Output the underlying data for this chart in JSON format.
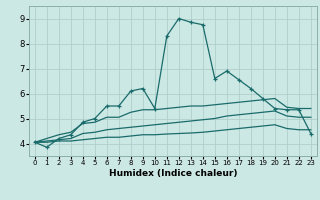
{
  "xlabel": "Humidex (Indice chaleur)",
  "bg_color": "#cce8e4",
  "grid_color": "#b0ceca",
  "line_color": "#1a6b6b",
  "xlim": [
    -0.5,
    23.5
  ],
  "ylim": [
    3.5,
    9.5
  ],
  "xticks": [
    0,
    1,
    2,
    3,
    4,
    5,
    6,
    7,
    8,
    9,
    10,
    11,
    12,
    13,
    14,
    15,
    16,
    17,
    18,
    19,
    20,
    21,
    22,
    23
  ],
  "yticks": [
    4,
    5,
    6,
    7,
    8,
    9
  ],
  "series1_x": [
    0,
    1,
    2,
    3,
    4,
    5,
    6,
    7,
    8,
    9,
    10,
    11,
    12,
    13,
    14,
    15,
    16,
    17,
    18,
    19,
    20,
    21,
    22,
    23
  ],
  "series1_y": [
    4.05,
    4.2,
    4.35,
    4.45,
    4.8,
    4.85,
    5.05,
    5.05,
    5.25,
    5.35,
    5.35,
    5.4,
    5.45,
    5.5,
    5.5,
    5.55,
    5.6,
    5.65,
    5.7,
    5.75,
    5.8,
    5.45,
    5.4,
    5.4
  ],
  "series2_x": [
    0,
    1,
    2,
    3,
    4,
    5,
    6,
    7,
    8,
    9,
    10,
    11,
    12,
    13,
    14,
    15,
    16,
    17,
    18,
    19,
    20,
    21,
    22,
    23
  ],
  "series2_y": [
    4.05,
    4.1,
    4.15,
    4.2,
    4.4,
    4.45,
    4.55,
    4.6,
    4.65,
    4.7,
    4.75,
    4.8,
    4.85,
    4.9,
    4.95,
    5.0,
    5.1,
    5.15,
    5.2,
    5.25,
    5.3,
    5.1,
    5.05,
    5.05
  ],
  "series3_x": [
    0,
    1,
    2,
    3,
    4,
    5,
    6,
    7,
    8,
    9,
    10,
    11,
    12,
    13,
    14,
    15,
    16,
    17,
    18,
    19,
    20,
    21,
    22,
    23
  ],
  "series3_y": [
    4.05,
    4.05,
    4.1,
    4.1,
    4.15,
    4.2,
    4.25,
    4.25,
    4.3,
    4.35,
    4.35,
    4.38,
    4.4,
    4.42,
    4.45,
    4.5,
    4.55,
    4.6,
    4.65,
    4.7,
    4.75,
    4.6,
    4.55,
    4.55
  ],
  "series4_x": [
    0,
    1,
    2,
    3,
    4,
    5,
    6,
    7,
    8,
    9,
    10,
    11,
    12,
    13,
    14,
    15,
    16,
    17,
    18,
    19,
    20,
    21,
    22,
    23
  ],
  "series4_y": [
    4.05,
    3.85,
    4.2,
    4.35,
    4.85,
    5.0,
    5.5,
    5.5,
    6.1,
    6.2,
    5.4,
    8.3,
    9.0,
    8.85,
    8.75,
    6.6,
    6.9,
    6.55,
    6.2,
    5.8,
    5.4,
    5.35,
    5.35,
    4.4
  ]
}
